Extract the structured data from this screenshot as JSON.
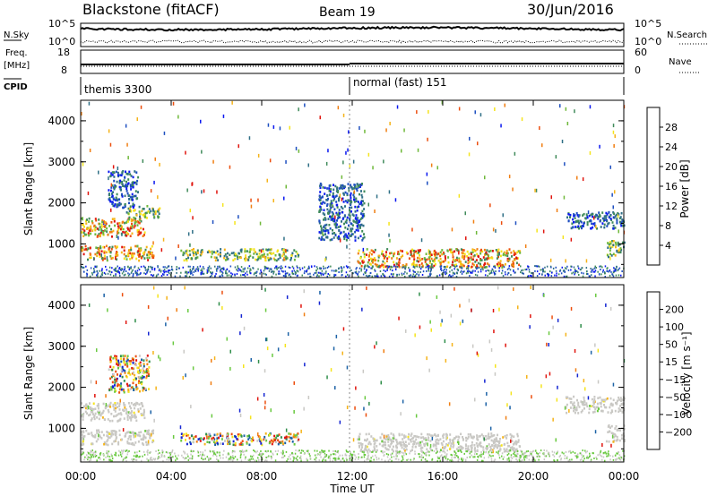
{
  "header": {
    "station": "Blackstone (fitACF)",
    "beam": "Beam 19",
    "date": "30/Jun/2016"
  },
  "noise_panel": {
    "left_label": "N.Sky",
    "left_ticks": [
      "10^5",
      "10^0"
    ],
    "right_ticks": [
      "10^5",
      "10^0"
    ],
    "right_label": "N.Search"
  },
  "freq_panel": {
    "left_label_1": "Freq.",
    "left_label_2": "[MHz]",
    "left_ticks": [
      "18",
      "8"
    ],
    "right_ticks": [
      "60",
      "0"
    ],
    "right_label": "Nave"
  },
  "cpid_panel": {
    "label": "CPID",
    "segments": [
      "themis 3300",
      "normal (fast) 151"
    ]
  },
  "chart_data": [
    {
      "type": "heatmap",
      "name": "Power",
      "xlabel": "",
      "ylabel": "Slant Range [km]",
      "y_ticks": [
        "1000",
        "2000",
        "3000",
        "4000"
      ],
      "ylim": [
        180,
        4500
      ],
      "colorbar": {
        "label": "Power [dB]",
        "ticks": [
          "4",
          "8",
          "12",
          "16",
          "20",
          "24",
          "28"
        ],
        "colors": [
          "#0a18f0",
          "#1e4fc0",
          "#2f6f86",
          "#3f8a5a",
          "#6fb83a",
          "#f5e41c",
          "#f5b319",
          "#f07e12",
          "#ec4e0e",
          "#e0140d"
        ]
      },
      "regions": [
        {
          "t0": 0.0,
          "t1": 3.2,
          "r0": 620,
          "r1": 980,
          "level": "high"
        },
        {
          "t0": 0.0,
          "t1": 2.8,
          "r0": 1200,
          "r1": 1650,
          "level": "high"
        },
        {
          "t0": 2.0,
          "t1": 3.5,
          "r0": 1650,
          "r1": 1950,
          "level": "mid"
        },
        {
          "t0": 1.2,
          "t1": 2.5,
          "r0": 1900,
          "r1": 2800,
          "level": "low"
        },
        {
          "t0": 4.4,
          "t1": 9.6,
          "r0": 620,
          "r1": 900,
          "level": "mid"
        },
        {
          "t0": 12.2,
          "t1": 19.4,
          "r0": 450,
          "r1": 900,
          "level": "high"
        },
        {
          "t0": 21.4,
          "t1": 24.0,
          "r0": 1400,
          "r1": 1800,
          "level": "low"
        },
        {
          "t0": 23.2,
          "t1": 24.0,
          "r0": 700,
          "r1": 1100,
          "level": "mid"
        },
        {
          "t0": 10.5,
          "t1": 12.5,
          "r0": 1100,
          "r1": 2500,
          "level": "low"
        }
      ]
    },
    {
      "type": "heatmap",
      "name": "Velocity",
      "xlabel": "Time UT",
      "ylabel": "Slant Range [km]",
      "y_ticks": [
        "1000",
        "2000",
        "3000",
        "4000"
      ],
      "ylim": [
        180,
        4500
      ],
      "x_ticks": [
        "00:00",
        "04:00",
        "08:00",
        "12:00",
        "16:00",
        "20:00",
        "00:00"
      ],
      "colorbar": {
        "label": "Velocity [m s⁻¹]",
        "ticks": [
          "200",
          "100",
          "50",
          "15",
          "−15",
          "−50",
          "−100",
          "−200"
        ],
        "colors": [
          "#1425d2",
          "#1c62a6",
          "#2f8e4a",
          "#69c940",
          "#c9c8c4",
          "#f5e41c",
          "#f5b319",
          "#f07e12",
          "#ec4e0e",
          "#e0140d"
        ]
      },
      "regions": [
        {
          "t0": 0.0,
          "t1": 3.2,
          "r0": 620,
          "r1": 980,
          "level": "gray"
        },
        {
          "t0": 0.0,
          "t1": 2.8,
          "r0": 1200,
          "r1": 1650,
          "level": "gray"
        },
        {
          "t0": 1.2,
          "t1": 3.0,
          "r0": 1900,
          "r1": 2800,
          "level": "mixed"
        },
        {
          "t0": 4.4,
          "t1": 9.6,
          "r0": 620,
          "r1": 900,
          "level": "mixed"
        },
        {
          "t0": 12.2,
          "t1": 19.4,
          "r0": 450,
          "r1": 900,
          "level": "gray"
        },
        {
          "t0": 21.4,
          "t1": 24.0,
          "r0": 1400,
          "r1": 1800,
          "level": "gray"
        },
        {
          "t0": 23.2,
          "t1": 24.0,
          "r0": 700,
          "r1": 1100,
          "level": "gray"
        }
      ]
    }
  ]
}
